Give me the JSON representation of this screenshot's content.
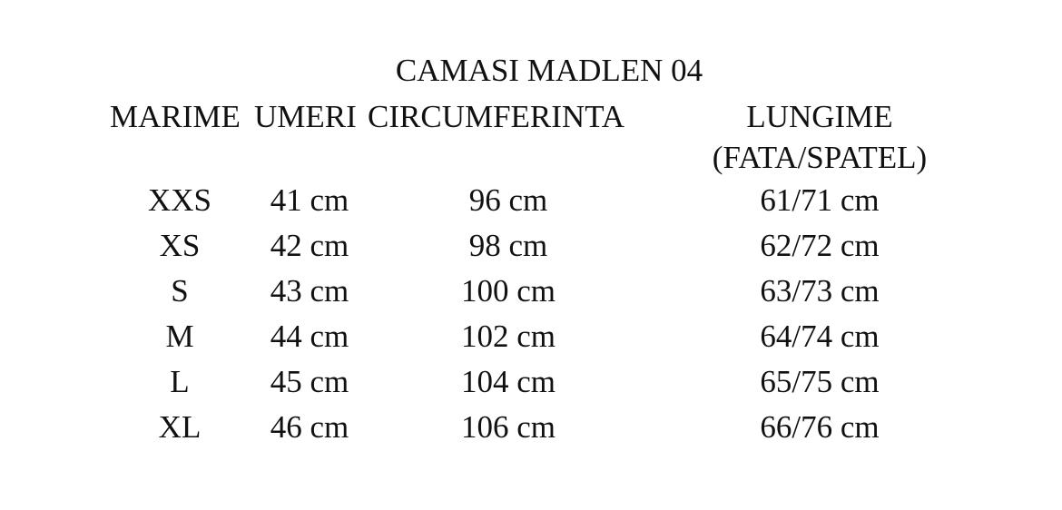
{
  "title": "CAMASI MADLEN 04",
  "headers": {
    "size": "MARIME",
    "shoulders": "UMERI",
    "circumference": "CIRCUMFERINTA",
    "length_line1": "LUNGIME",
    "length_line2": "(FATA/SPATEL)"
  },
  "rows": [
    {
      "size": "XXS",
      "shoulders": "41 cm",
      "circumference": "96 cm",
      "length": "61/71 cm"
    },
    {
      "size": "XS",
      "shoulders": "42 cm",
      "circumference": "98 cm",
      "length": "62/72 cm"
    },
    {
      "size": "S",
      "shoulders": "43 cm",
      "circumference": "100 cm",
      "length": "63/73 cm"
    },
    {
      "size": "M",
      "shoulders": "44 cm",
      "circumference": "102 cm",
      "length": "64/74 cm"
    },
    {
      "size": "L",
      "shoulders": "45 cm",
      "circumference": "104 cm",
      "length": "65/75 cm"
    },
    {
      "size": "XL",
      "shoulders": "46 cm",
      "circumference": "106 cm",
      "length": "66/76 cm"
    }
  ]
}
